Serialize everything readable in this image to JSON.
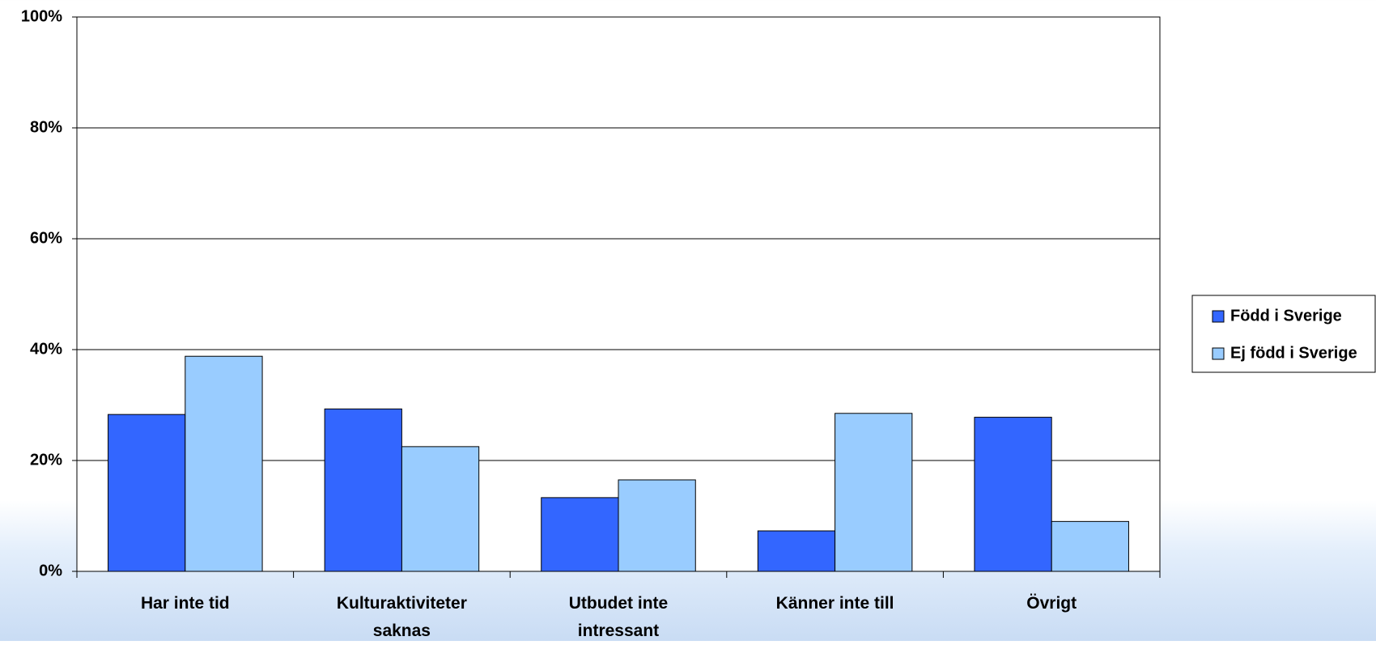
{
  "chart_data": {
    "type": "bar",
    "categories": [
      "Har inte tid",
      "Kulturaktiviteter saknas",
      "Utbudet inte intressant",
      "Känner inte till",
      "Övrigt"
    ],
    "series": [
      {
        "name": "Född i Sverige",
        "color": "#3366ff",
        "values": [
          28.3,
          29.3,
          13.3,
          7.3,
          27.8
        ]
      },
      {
        "name": "Ej född i Sverige",
        "color": "#99ccff",
        "values": [
          38.8,
          22.5,
          16.5,
          28.5,
          9.0
        ]
      }
    ],
    "ylim": [
      0,
      100
    ],
    "yticks": [
      {
        "value": 0,
        "label": "0%"
      },
      {
        "value": 20,
        "label": "20%"
      },
      {
        "value": 40,
        "label": "40%"
      },
      {
        "value": 60,
        "label": "60%"
      },
      {
        "value": 80,
        "label": "80%"
      },
      {
        "value": 100,
        "label": "100%"
      }
    ],
    "grid": true,
    "legend": "right"
  }
}
